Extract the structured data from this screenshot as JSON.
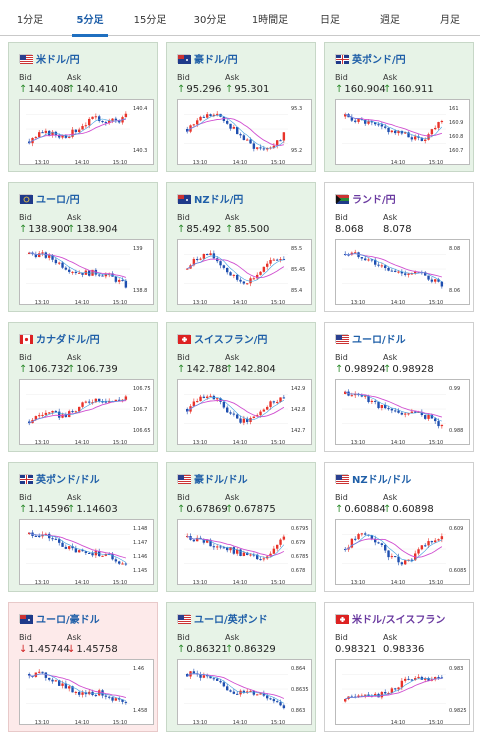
{
  "tabs": [
    "1分足",
    "5分足",
    "15分足",
    "30分足",
    "1時間足",
    "日足",
    "週足",
    "月足"
  ],
  "active_tab": 1,
  "bid_label": "Bid",
  "ask_label": "Ask",
  "colors": {
    "up": "#e8332a",
    "down": "#1f4fb0",
    "ma": "#d04fd0",
    "ma2": "#3fa0e0",
    "arrow_up": "#2a8a2a",
    "arrow_down": "#d02020"
  },
  "cards": [
    {
      "title": "米ドル/円",
      "bid": "140.408",
      "ask": "140.410",
      "dir": "up",
      "flag": "us",
      "y_labels": [
        "140.4",
        "140.3"
      ],
      "x_labels": [
        "13:10",
        "14:10",
        "15:10"
      ],
      "trend": "up"
    },
    {
      "title": "豪ドル/円",
      "bid": "95.296",
      "ask": "95.301",
      "dir": "up",
      "flag": "au",
      "y_labels": [
        "95.3",
        "95.2"
      ],
      "x_labels": [
        "13:10",
        "14:10",
        "15:10"
      ],
      "trend": "vshape"
    },
    {
      "title": "英ポンド/円",
      "bid": "160.904",
      "ask": "160.911",
      "dir": "up",
      "flag": "gb",
      "y_labels": [
        "161",
        "160.9",
        "160.8",
        "160.7"
      ],
      "x_labels": [
        "14:10",
        "15:10"
      ],
      "trend": "down_end_up"
    },
    {
      "title": "ユーロ/円",
      "bid": "138.900",
      "ask": "138.904",
      "dir": "up",
      "flag": "eu",
      "y_labels": [
        "139",
        "138.8"
      ],
      "x_labels": [
        "13:10",
        "14:10",
        "15:10"
      ],
      "trend": "down"
    },
    {
      "title": "NZドル/円",
      "bid": "85.492",
      "ask": "85.500",
      "dir": "up",
      "flag": "nz",
      "y_labels": [
        "85.5",
        "85.45",
        "85.4"
      ],
      "x_labels": [
        "13:10",
        "14:10",
        "15:10"
      ],
      "trend": "wave"
    },
    {
      "title": "ランド/円",
      "bid": "8.068",
      "ask": "8.078",
      "dir": "none",
      "flag": "za",
      "y_labels": [
        "8.08",
        "8.06"
      ],
      "x_labels": [
        "13:10",
        "14:10",
        "15:10"
      ],
      "trend": "down"
    },
    {
      "title": "カナダドル/円",
      "bid": "106.732",
      "ask": "106.739",
      "dir": "up",
      "flag": "ca",
      "y_labels": [
        "106.75",
        "106.7",
        "106.65"
      ],
      "x_labels": [
        "13:10",
        "14:10",
        "15:10"
      ],
      "trend": "up"
    },
    {
      "title": "スイスフラン/円",
      "bid": "142.788",
      "ask": "142.804",
      "dir": "up",
      "flag": "ch",
      "y_labels": [
        "142.9",
        "142.8",
        "142.7"
      ],
      "x_labels": [
        "13:10",
        "14:10",
        "15:10"
      ],
      "trend": "wave"
    },
    {
      "title": "ユーロ/ドル",
      "bid": "0.98924",
      "ask": "0.98928",
      "dir": "up",
      "flag": "us",
      "y_labels": [
        "0.99",
        "0.988"
      ],
      "x_labels": [
        "13:10",
        "14:10",
        "15:10"
      ],
      "trend": "down"
    },
    {
      "title": "英ポンド/ドル",
      "bid": "1.14596",
      "ask": "1.14603",
      "dir": "up",
      "flag": "gb",
      "y_labels": [
        "1.148",
        "1.147",
        "1.146",
        "1.145"
      ],
      "x_labels": [
        "13:10",
        "14:10",
        "15:10"
      ],
      "trend": "down"
    },
    {
      "title": "豪ドル/ドル",
      "bid": "0.67869",
      "ask": "0.67875",
      "dir": "up",
      "flag": "us",
      "y_labels": [
        "0.6795",
        "0.679",
        "0.6785",
        "0.678"
      ],
      "x_labels": [
        "13:10",
        "14:10",
        "15:10"
      ],
      "trend": "down_end_up"
    },
    {
      "title": "NZドル/ドル",
      "bid": "0.60884",
      "ask": "0.60898",
      "dir": "up",
      "flag": "us",
      "y_labels": [
        "0.609",
        "0.6085"
      ],
      "x_labels": [
        "13:10",
        "14:10",
        "15:10"
      ],
      "trend": "wave"
    },
    {
      "title": "ユーロ/豪ドル",
      "bid": "1.45744",
      "ask": "1.45758",
      "dir": "down",
      "flag": "au",
      "y_labels": [
        "1.46",
        "1.458"
      ],
      "x_labels": [
        "13:10",
        "14:10",
        "15:10"
      ],
      "trend": "down"
    },
    {
      "title": "ユーロ/英ポンド",
      "bid": "0.86321",
      "ask": "0.86329",
      "dir": "up",
      "flag": "us",
      "y_labels": [
        "0.864",
        "0.8635",
        "0.863"
      ],
      "x_labels": [
        "13:10",
        "14:10",
        "15:10"
      ],
      "trend": "down"
    },
    {
      "title": "米ドル/スイスフラン",
      "bid": "0.98321",
      "ask": "0.98336",
      "dir": "none",
      "flag": "ch",
      "y_labels": [
        "0.983",
        "0.9825"
      ],
      "x_labels": [
        "14:10",
        "15:10"
      ],
      "trend": "up"
    }
  ]
}
